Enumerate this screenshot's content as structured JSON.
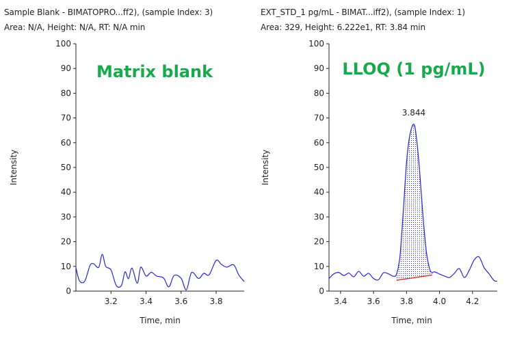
{
  "colors": {
    "trace": "#2222dd",
    "baseline": "#e02020",
    "annotation": "#1aa84c",
    "axis": "#222222",
    "fill": "#2222dd"
  },
  "chart_data": [
    {
      "type": "line",
      "header_line1": "Sample Blank - BIMATOPRO...ff2), (sample Index: 3)",
      "header_line2": "Area: N/A, Height: N/A, RT: N/A min",
      "annotation": "Matrix blank",
      "xlabel": "Time, min",
      "ylabel": "Intensity",
      "xlim": [
        3.0,
        3.96
      ],
      "ylim": [
        0,
        100
      ],
      "xticks": [
        3.2,
        3.4,
        3.6,
        3.8
      ],
      "xtick_labels": [
        "3.2",
        "3.4",
        "3.6",
        "3.8"
      ],
      "yticks": [
        0,
        10,
        20,
        30,
        40,
        50,
        60,
        70,
        80,
        90,
        100
      ],
      "ytick_labels": [
        "0",
        "10",
        "20",
        "30",
        "40",
        "50",
        "60",
        "70",
        "80",
        "90",
        "100"
      ],
      "series": [
        {
          "x": [
            3.0,
            3.02,
            3.05,
            3.08,
            3.1,
            3.13,
            3.15,
            3.17,
            3.2,
            3.23,
            3.26,
            3.28,
            3.3,
            3.32,
            3.35,
            3.37,
            3.4,
            3.43,
            3.46,
            3.5,
            3.53,
            3.56,
            3.6,
            3.63,
            3.66,
            3.7,
            3.73,
            3.76,
            3.8,
            3.83,
            3.86,
            3.9,
            3.93,
            3.96
          ],
          "y": [
            9.5,
            4.2,
            4.0,
            10.3,
            11.1,
            9.6,
            14.9,
            10.0,
            8.6,
            2.3,
            2.3,
            7.8,
            5.0,
            9.3,
            3.2,
            9.7,
            6.1,
            7.6,
            6.1,
            5.3,
            1.7,
            6.3,
            5.2,
            0.5,
            7.5,
            5.1,
            7.2,
            6.6,
            12.4,
            10.8,
            9.7,
            10.6,
            6.4,
            3.9
          ]
        }
      ]
    },
    {
      "type": "line",
      "header_line1": "EXT_STD_1 pg/mL  - BIMAT...iff2), (sample Index: 1)",
      "header_line2": "Area: 329, Height: 6.222e1, RT: 3.84 min",
      "annotation": "LLOQ (1 pg/mL)",
      "xlabel": "Time, min",
      "ylabel": "Intensity",
      "xlim": [
        3.33,
        4.35
      ],
      "ylim": [
        0,
        100
      ],
      "xticks": [
        3.4,
        3.6,
        3.8,
        4.0,
        4.2
      ],
      "xtick_labels": [
        "3.4",
        "3.6",
        "3.8",
        "4.0",
        "4.2"
      ],
      "yticks": [
        0,
        10,
        20,
        30,
        40,
        50,
        60,
        70,
        80,
        90,
        100
      ],
      "ytick_labels": [
        "0",
        "10",
        "20",
        "30",
        "40",
        "50",
        "60",
        "70",
        "80",
        "90",
        "100"
      ],
      "peak_label": "3.844",
      "peak_label_x": 3.844,
      "peak_label_y": 71,
      "peak_window": [
        3.74,
        3.955
      ],
      "integration_baseline": {
        "x": [
          3.74,
          3.955
        ],
        "y": [
          4.4,
          6.5
        ]
      },
      "series": [
        {
          "x": [
            3.33,
            3.36,
            3.39,
            3.42,
            3.45,
            3.48,
            3.51,
            3.54,
            3.57,
            3.6,
            3.63,
            3.66,
            3.69,
            3.72,
            3.74,
            3.76,
            3.78,
            3.8,
            3.82,
            3.844,
            3.86,
            3.88,
            3.9,
            3.92,
            3.94,
            3.955,
            3.97,
            4.0,
            4.03,
            4.06,
            4.09,
            4.12,
            4.15,
            4.18,
            4.21,
            4.24,
            4.27,
            4.3,
            4.33,
            4.35
          ],
          "y": [
            5.1,
            7.0,
            7.5,
            6.3,
            7.3,
            5.8,
            8.0,
            6.0,
            7.2,
            5.1,
            4.6,
            7.4,
            7.0,
            6.0,
            7.0,
            14.0,
            32.0,
            52.0,
            63.0,
            67.5,
            62.0,
            48.0,
            30.0,
            16.0,
            9.0,
            7.5,
            7.8,
            6.9,
            6.1,
            5.5,
            7.2,
            9.1,
            5.5,
            8.4,
            12.6,
            13.8,
            9.5,
            7.0,
            4.3,
            4.0
          ]
        }
      ]
    }
  ]
}
